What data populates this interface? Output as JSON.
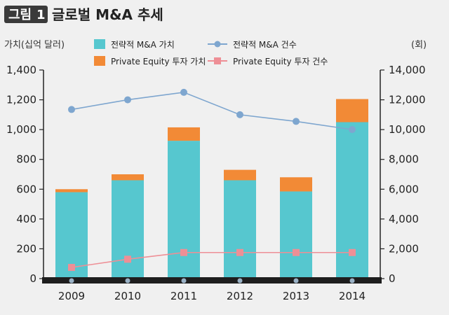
{
  "header": {
    "badge_label": "그림",
    "badge_number": "1",
    "title": "글로벌 M&A 추세"
  },
  "colors": {
    "bar_strategic": "#56c7cf",
    "bar_pe": "#f28a36",
    "line_strategic": "#7ea6cf",
    "line_pe": "#ee8f96",
    "axis": "#222222",
    "badge_bg": "#3a3a3a"
  },
  "chart_data": {
    "type": "bar+line",
    "categories": [
      "2009",
      "2010",
      "2011",
      "2012",
      "2013",
      "2014"
    ],
    "ylabel_left": "가치(십억 달러)",
    "ylabel_right": "(회)",
    "ylim_left": [
      0,
      1400
    ],
    "ylim_right": [
      0,
      14000
    ],
    "yticks_left": [
      "0",
      "200",
      "400",
      "600",
      "800",
      "1,000",
      "1,200",
      "1,400"
    ],
    "yticks_right": [
      "0",
      "2,000",
      "4,000",
      "6,000",
      "8,000",
      "10,000",
      "12,000",
      "14,000"
    ],
    "legend_position": "top",
    "bar_series": [
      {
        "name": "전략적 M&A 가치",
        "values": [
          580,
          660,
          925,
          660,
          585,
          1050
        ]
      },
      {
        "name": "Private Equity 투자 가치",
        "values": [
          20,
          40,
          90,
          70,
          95,
          155
        ]
      }
    ],
    "line_series": [
      {
        "name": "전략적 M&A 건수",
        "axis": "right",
        "values": [
          11350,
          12000,
          12500,
          11000,
          10550,
          10000
        ]
      },
      {
        "name": "Private Equity 투자 건수",
        "axis": "right",
        "values": [
          750,
          1300,
          1750,
          1750,
          1750,
          1750
        ]
      }
    ]
  }
}
